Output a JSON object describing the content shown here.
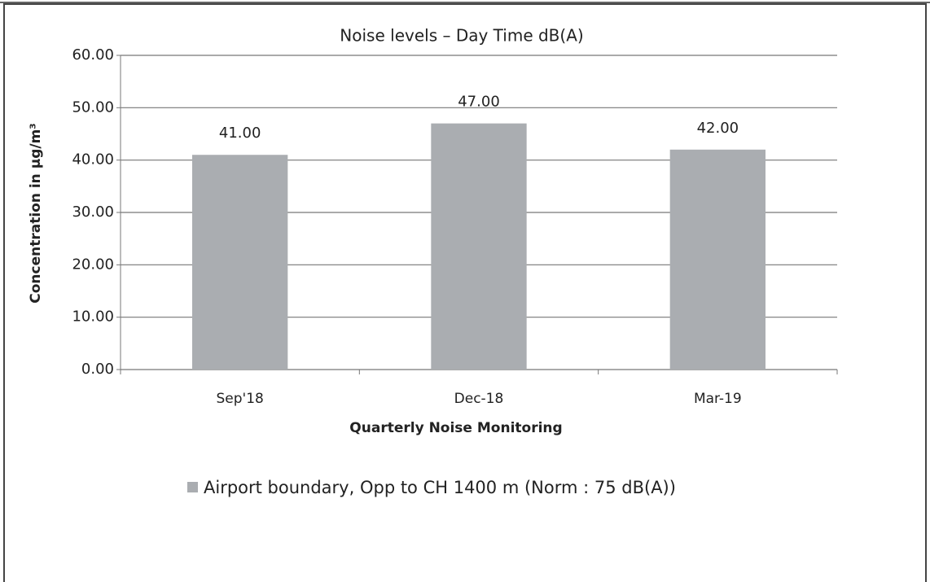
{
  "chart_data": {
    "type": "bar",
    "title": "Noise levels – Day Time dB(A)",
    "y_label": "Concentration in µg/m³",
    "x_label": "Quarterly Noise  Monitoring",
    "categories": [
      "Sep'18",
      "Dec-18",
      "Mar-19"
    ],
    "series": [
      {
        "name": "Airport boundary, Opp to CH 1400 m (Norm : 75 dB(A))",
        "color": "#aaadb1",
        "values": [
          41,
          47,
          42
        ],
        "value_labels": [
          "41.00",
          "47.00",
          "42.00"
        ]
      }
    ],
    "ylim": [
      0,
      60
    ],
    "yticks": [
      {
        "value": 0,
        "label": "0.00"
      },
      {
        "value": 10,
        "label": "10.00"
      },
      {
        "value": 20,
        "label": "20.00"
      },
      {
        "value": 30,
        "label": "30.00"
      },
      {
        "value": 40,
        "label": "40.00"
      },
      {
        "value": 50,
        "label": "50.00"
      },
      {
        "value": 60,
        "label": "60.00"
      }
    ],
    "grid": true,
    "legend": "bottom"
  }
}
